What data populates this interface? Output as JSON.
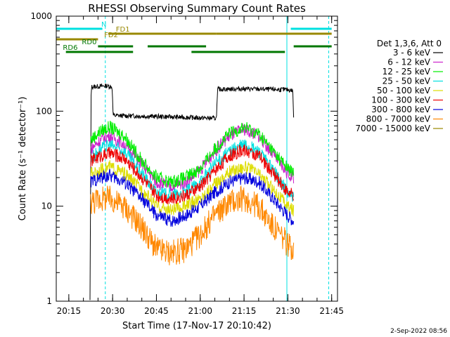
{
  "chart_data": {
    "type": "line",
    "title": "RHESSI Observing Summary Count Rates",
    "xlabel": "Start Time (17-Nov-17 20:10:42)",
    "ylabel": "Count Rate (s⁻¹ detector⁻¹)",
    "yscale": "log",
    "ylim": [
      1,
      1000
    ],
    "xlim": [
      "20:10:42",
      "21:47:00"
    ],
    "x_ticks": [
      "20:15",
      "20:30",
      "20:45",
      "21:00",
      "21:15",
      "21:30",
      "21:45"
    ],
    "y_ticks": [
      "1",
      "10",
      "100",
      "1000"
    ],
    "legend_position": "right",
    "legend_header": "Det 1,3,6, Att 0",
    "grid": false,
    "data_start": "20:22:15",
    "data_end": "21:32:10",
    "series": [
      {
        "name": "3 - 6 keV",
        "color": "#000000",
        "points": [
          [
            "20:22:15",
            1
          ],
          [
            "20:22:40",
            180
          ],
          [
            "20:28:00",
            185
          ],
          [
            "20:29:50",
            180
          ],
          [
            "20:30:10",
            90
          ],
          [
            "20:45:00",
            88
          ],
          [
            "21:00:00",
            85
          ],
          [
            "21:05:30",
            84
          ],
          [
            "21:06:00",
            170
          ],
          [
            "21:15:00",
            172
          ],
          [
            "21:30:00",
            168
          ],
          [
            "21:31:40",
            165
          ],
          [
            "21:32:00",
            85
          ]
        ]
      },
      {
        "name": "6 - 12 keV",
        "color": "#cc22cc",
        "points": [
          [
            "20:22:30",
            40
          ],
          [
            "20:26:00",
            50
          ],
          [
            "20:29:00",
            55
          ],
          [
            "20:34:00",
            45
          ],
          [
            "20:40:00",
            28
          ],
          [
            "20:45:00",
            18
          ],
          [
            "20:50:00",
            16
          ],
          [
            "20:55:00",
            18
          ],
          [
            "21:00:00",
            24
          ],
          [
            "21:05:00",
            38
          ],
          [
            "21:10:00",
            55
          ],
          [
            "21:15:00",
            65
          ],
          [
            "21:20:00",
            55
          ],
          [
            "21:25:00",
            35
          ],
          [
            "21:30:00",
            22
          ],
          [
            "21:32:00",
            20
          ]
        ]
      },
      {
        "name": "12 - 25 keV",
        "color": "#00ee00",
        "points": [
          [
            "20:22:30",
            50
          ],
          [
            "20:26:00",
            62
          ],
          [
            "20:29:00",
            68
          ],
          [
            "20:34:00",
            55
          ],
          [
            "20:40:00",
            30
          ],
          [
            "20:45:00",
            20
          ],
          [
            "20:50:00",
            18
          ],
          [
            "20:55:00",
            20
          ],
          [
            "21:00:00",
            25
          ],
          [
            "21:05:00",
            40
          ],
          [
            "21:10:00",
            58
          ],
          [
            "21:15:00",
            68
          ],
          [
            "21:20:00",
            58
          ],
          [
            "21:25:00",
            38
          ],
          [
            "21:30:00",
            25
          ],
          [
            "21:32:00",
            22
          ]
        ]
      },
      {
        "name": "25 - 50 keV",
        "color": "#00e0e0",
        "points": [
          [
            "20:22:30",
            32
          ],
          [
            "20:26:00",
            40
          ],
          [
            "20:29:00",
            44
          ],
          [
            "20:34:00",
            38
          ],
          [
            "20:40:00",
            22
          ],
          [
            "20:45:00",
            14
          ],
          [
            "20:50:00",
            13
          ],
          [
            "20:55:00",
            14
          ],
          [
            "21:00:00",
            18
          ],
          [
            "21:05:00",
            28
          ],
          [
            "21:10:00",
            38
          ],
          [
            "21:15:00",
            45
          ],
          [
            "21:20:00",
            38
          ],
          [
            "21:25:00",
            24
          ],
          [
            "21:30:00",
            14
          ],
          [
            "21:32:00",
            12
          ]
        ]
      },
      {
        "name": "50 - 100 keV",
        "color": "#dddd00",
        "points": [
          [
            "20:22:30",
            22
          ],
          [
            "20:26:00",
            24
          ],
          [
            "20:29:00",
            26
          ],
          [
            "20:34:00",
            22
          ],
          [
            "20:40:00",
            15
          ],
          [
            "20:45:00",
            10
          ],
          [
            "20:50:00",
            9
          ],
          [
            "20:55:00",
            10
          ],
          [
            "21:00:00",
            12
          ],
          [
            "21:05:00",
            17
          ],
          [
            "21:10:00",
            23
          ],
          [
            "21:15:00",
            26
          ],
          [
            "21:20:00",
            22
          ],
          [
            "21:25:00",
            15
          ],
          [
            "21:30:00",
            10
          ],
          [
            "21:32:00",
            9
          ]
        ]
      },
      {
        "name": "100 - 300 keV",
        "color": "#ee0000",
        "points": [
          [
            "20:22:30",
            30
          ],
          [
            "20:26:00",
            34
          ],
          [
            "20:29:00",
            36
          ],
          [
            "20:34:00",
            32
          ],
          [
            "20:40:00",
            20
          ],
          [
            "20:45:00",
            13
          ],
          [
            "20:50:00",
            12
          ],
          [
            "20:55:00",
            13
          ],
          [
            "21:00:00",
            16
          ],
          [
            "21:05:00",
            24
          ],
          [
            "21:10:00",
            34
          ],
          [
            "21:15:00",
            39
          ],
          [
            "21:20:00",
            34
          ],
          [
            "21:25:00",
            22
          ],
          [
            "21:30:00",
            14
          ],
          [
            "21:32:00",
            13
          ]
        ]
      },
      {
        "name": "300 - 800 keV",
        "color": "#0000dd",
        "points": [
          [
            "20:22:30",
            18
          ],
          [
            "20:26:00",
            20
          ],
          [
            "20:29:00",
            21
          ],
          [
            "20:34:00",
            18
          ],
          [
            "20:40:00",
            12
          ],
          [
            "20:45:00",
            8
          ],
          [
            "20:50:00",
            7
          ],
          [
            "20:55:00",
            8
          ],
          [
            "21:00:00",
            10
          ],
          [
            "21:05:00",
            14
          ],
          [
            "21:10:00",
            18
          ],
          [
            "21:15:00",
            20
          ],
          [
            "21:20:00",
            18
          ],
          [
            "21:25:00",
            12
          ],
          [
            "21:30:00",
            8
          ],
          [
            "21:32:00",
            7
          ]
        ]
      },
      {
        "name": "800 - 7000 keV",
        "color": "#ff8800",
        "points": [
          [
            "20:22:30",
            11
          ],
          [
            "20:26:00",
            12
          ],
          [
            "20:29:00",
            12
          ],
          [
            "20:34:00",
            10
          ],
          [
            "20:40:00",
            6
          ],
          [
            "20:45:00",
            3.5
          ],
          [
            "20:50:00",
            3.2
          ],
          [
            "20:55:00",
            3.5
          ],
          [
            "21:00:00",
            5
          ],
          [
            "21:05:00",
            8
          ],
          [
            "21:10:00",
            11
          ],
          [
            "21:15:00",
            12
          ],
          [
            "21:20:00",
            10
          ],
          [
            "21:25:00",
            6
          ],
          [
            "21:30:00",
            4
          ],
          [
            "21:32:00",
            3.5
          ]
        ]
      },
      {
        "name": "7000 - 15000 keV",
        "color": "#998800",
        "points": []
      }
    ],
    "flag_bars": [
      {
        "label": "N",
        "color": "#00e0e0",
        "segments": [
          [
            "20:10:42",
            "20:26:30"
          ],
          [
            "21:31:00",
            "21:45:00"
          ]
        ]
      },
      {
        "label": "FD1",
        "color": "#998800",
        "segments": [
          [
            "20:28:30",
            "21:05:30"
          ],
          [
            "21:05:30",
            "21:45:00"
          ]
        ]
      },
      {
        "label": "FD2",
        "color": "#998800",
        "segments": [
          [
            "20:10:42",
            "20:25:00"
          ]
        ]
      },
      {
        "label": "RD0",
        "color": "#007700",
        "segments": [
          [
            "20:10:42",
            "20:10:42"
          ],
          [
            "20:25:00",
            "20:37:00"
          ],
          [
            "20:42:00",
            "21:02:00"
          ],
          [
            "21:32:00",
            "21:45:00"
          ]
        ]
      },
      {
        "label": "RD6",
        "color": "#007700",
        "segments": [
          [
            "20:14:00",
            "20:37:00"
          ],
          [
            "20:57:00",
            "21:29:00"
          ]
        ]
      }
    ],
    "vertical_markers": [
      {
        "time": "20:10:42",
        "color": "#00e0e0",
        "style": "solid"
      },
      {
        "time": "20:27:30",
        "color": "#00e0e0",
        "style": "dashed"
      },
      {
        "time": "21:29:40",
        "color": "#00e0e0",
        "style": "solid"
      },
      {
        "time": "21:44:00",
        "color": "#00e0e0",
        "style": "dashed"
      }
    ]
  },
  "footer": {
    "date_stamp": "2-Sep-2022 08:56"
  }
}
